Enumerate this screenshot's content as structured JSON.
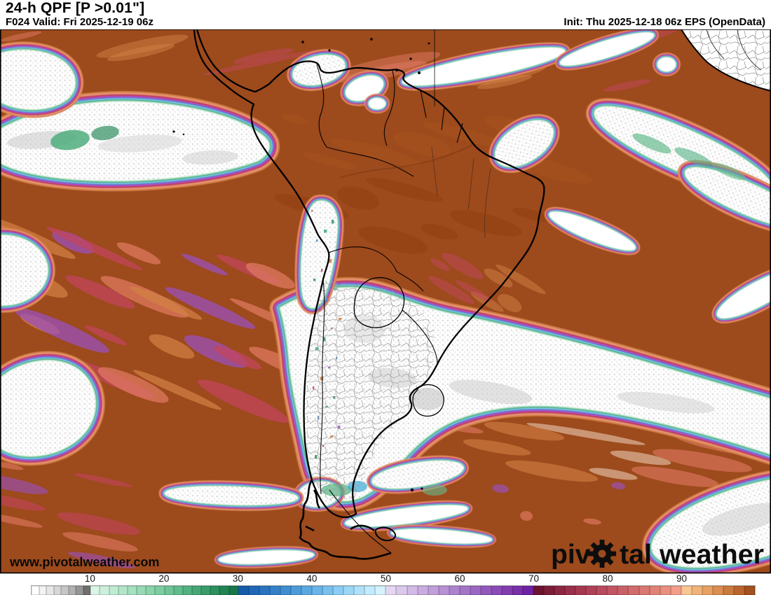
{
  "header": {
    "title": "24-h QPF [P >0.01\"]",
    "valid": "F024 Valid: Fri 2025-12-19 06z",
    "init": "Init: Thu 2025-12-18 06z EPS (OpenData)"
  },
  "map": {
    "watermark": "www.pivotalweather.com",
    "logo_pre": "piv",
    "logo_post": "tal weather",
    "colors": {
      "land_high": "#9d4a1c",
      "frame": "#000000",
      "coast": "#000000",
      "admin_mesh": "#9a9a9a",
      "speckle": "#8f8f8f"
    },
    "fringe": [
      [
        "#d28145",
        31
      ],
      [
        "#ea9478",
        26.5
      ],
      [
        "#bf4056",
        22
      ],
      [
        "#ad4cc4",
        17.5
      ],
      [
        "#4484cc",
        13
      ],
      [
        "#90d0f0",
        10
      ],
      [
        "#3ba78f",
        7.4
      ],
      [
        "#74c594",
        5
      ],
      [
        "#c9edd8",
        2.6
      ]
    ],
    "mottle_colors": {
      "salmon": "#e07a63",
      "crimson": "#c2455e",
      "purple": "#9b50c2",
      "orange": "#d28145",
      "tan": "#e8c9b0",
      "dark_amazon": "#ab5620",
      "deep_brown": "#8f3e10"
    }
  },
  "colorbar": {
    "unit_start": 2,
    "unit_end": 100,
    "ticks": [
      10,
      20,
      30,
      40,
      50,
      60,
      70,
      80,
      90
    ],
    "cells": [
      [
        "#ffffff",
        1
      ],
      [
        "#f3f3f3",
        1
      ],
      [
        "#e6e6e6",
        1
      ],
      [
        "#d7d7d7",
        1
      ],
      [
        "#c6c6c6",
        1
      ],
      [
        "#b1b1b1",
        1
      ],
      [
        "#959595",
        1
      ],
      [
        "#6f6f6f",
        1
      ],
      [
        "#daf5e6",
        1.25
      ],
      [
        "#cdf0dc",
        1.25
      ],
      [
        "#c0ebd3",
        1.25
      ],
      [
        "#b3e6c9",
        1.25
      ],
      [
        "#a5e0bf",
        1.25
      ],
      [
        "#98dab5",
        1.25
      ],
      [
        "#8ad3ab",
        1.25
      ],
      [
        "#7ccca1",
        1.25
      ],
      [
        "#6ec497",
        1.25
      ],
      [
        "#60bb8d",
        1.25
      ],
      [
        "#52b182",
        1.25
      ],
      [
        "#45a777",
        1.25
      ],
      [
        "#389c6b",
        1.25
      ],
      [
        "#2c905f",
        1.25
      ],
      [
        "#218453",
        1.25
      ],
      [
        "#167847",
        1.25
      ],
      [
        "#155cab",
        1.4286
      ],
      [
        "#1e68b5",
        1.4286
      ],
      [
        "#2874bf",
        1.4286
      ],
      [
        "#3381c8",
        1.4286
      ],
      [
        "#3f8ed1",
        1.4286
      ],
      [
        "#4c9bd9",
        1.4286
      ],
      [
        "#5aa8e1",
        1.4286
      ],
      [
        "#69b4e8",
        1.4286
      ],
      [
        "#79c0ee",
        1.4286
      ],
      [
        "#8accf3",
        1.4286
      ],
      [
        "#9cd7f7",
        1.4286
      ],
      [
        "#afe1fa",
        1.4286
      ],
      [
        "#c2ebfd",
        1.4286
      ],
      [
        "#d4f3fe",
        1.4286
      ],
      [
        "#e4d7f1",
        1.4286
      ],
      [
        "#dbc9eb",
        1.4286
      ],
      [
        "#d2bbe6",
        1.4286
      ],
      [
        "#c9ade0",
        1.4286
      ],
      [
        "#c09fda",
        1.4286
      ],
      [
        "#b791d4",
        1.4286
      ],
      [
        "#ae83ce",
        1.4286
      ],
      [
        "#a575c8",
        1.4286
      ],
      [
        "#9c67c2",
        1.4286
      ],
      [
        "#9359bc",
        1.4286
      ],
      [
        "#8a4bb6",
        1.4286
      ],
      [
        "#813db0",
        1.4286
      ],
      [
        "#782fa9",
        1.4286
      ],
      [
        "#6f21a3",
        1.4286
      ],
      [
        "#6b1430",
        1.4286
      ],
      [
        "#7c1d39",
        1.4286
      ],
      [
        "#8c2642",
        1.4286
      ],
      [
        "#992f4a",
        1.4286
      ],
      [
        "#a53851",
        1.4286
      ],
      [
        "#af4157",
        1.4286
      ],
      [
        "#b84b5d",
        1.4286
      ],
      [
        "#c15562",
        1.4286
      ],
      [
        "#c96067",
        1.4286
      ],
      [
        "#d16b6c",
        1.4286
      ],
      [
        "#d97772",
        1.4286
      ],
      [
        "#e18378",
        1.4286
      ],
      [
        "#e9907f",
        1.4286
      ],
      [
        "#f19d88",
        1.4286
      ],
      [
        "#f8c690",
        1.4286
      ],
      [
        "#f2b379",
        1.4286
      ],
      [
        "#e7a163",
        1.4286
      ],
      [
        "#da8e4f",
        1.4286
      ],
      [
        "#cb7a3d",
        1.4286
      ],
      [
        "#b9652d",
        1.4286
      ],
      [
        "#a3511e",
        1.4286
      ]
    ]
  }
}
